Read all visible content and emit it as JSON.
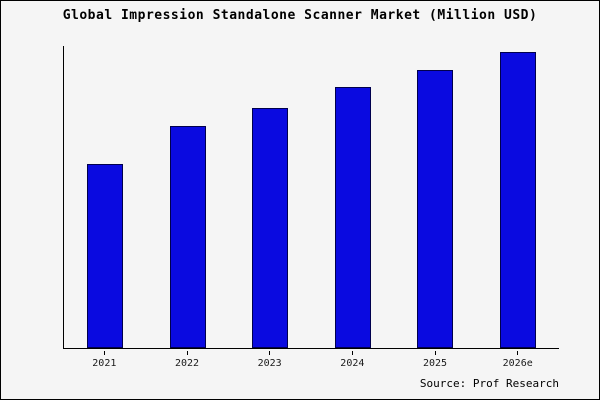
{
  "title": "Global Impression Standalone Scanner Market (Million USD)",
  "source": "Source: Prof Research",
  "chart_data": {
    "type": "bar",
    "title": "Global Impression Standalone Scanner Market (Million USD)",
    "categories": [
      "2021",
      "2022",
      "2023",
      "2024",
      "2025",
      "2026e"
    ],
    "values": [
      62,
      75,
      81,
      88,
      94,
      100
    ],
    "xlabel": "",
    "ylabel": "",
    "ylim": [
      0,
      102
    ],
    "grid": false,
    "legend": false,
    "bar_color": "#0a0ae0",
    "bar_border_color": "#00004d",
    "background_color": "#f5f5f5",
    "annotation": "Source: Prof Research"
  }
}
